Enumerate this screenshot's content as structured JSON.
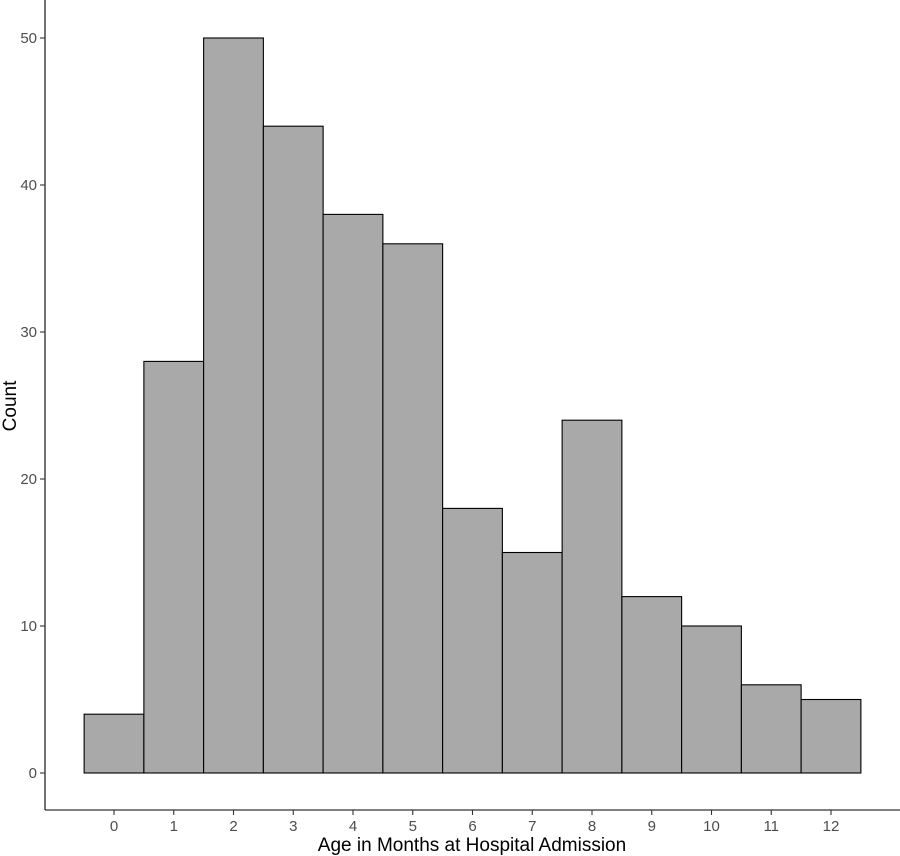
{
  "chart_data": {
    "type": "bar",
    "categories": [
      "0",
      "1",
      "2",
      "3",
      "4",
      "5",
      "6",
      "7",
      "8",
      "9",
      "10",
      "11",
      "12"
    ],
    "values": [
      4,
      28,
      50,
      44,
      38,
      36,
      18,
      15,
      24,
      12,
      10,
      6,
      5
    ],
    "xlabel": "Age in Months at Hospital Admission",
    "ylabel": "Count",
    "ylim": [
      0,
      53
    ],
    "yticks": [
      0,
      10,
      20,
      30,
      40,
      50
    ],
    "grid": false,
    "bar_fill": "#a9a9a9",
    "bar_stroke": "#000000"
  }
}
